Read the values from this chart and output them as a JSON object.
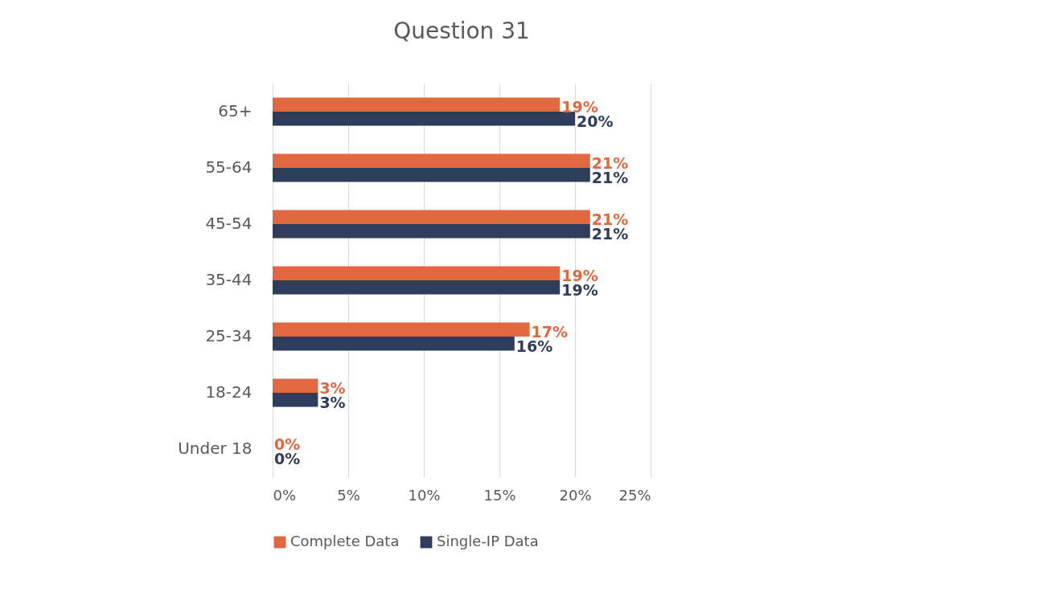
{
  "chart_data": {
    "type": "bar",
    "orientation": "horizontal",
    "title": "Question 31",
    "categories": [
      "65+",
      "55-64",
      "45-54",
      "35-44",
      "25-34",
      "18-24",
      "Under 18"
    ],
    "series": [
      {
        "name": "Complete Data",
        "color": "#e0673e",
        "values": [
          19,
          21,
          21,
          19,
          17,
          3,
          0
        ],
        "value_labels": [
          "19%",
          "21%",
          "21%",
          "19%",
          "17%",
          "3%",
          "0%"
        ]
      },
      {
        "name": "Single-IP Data",
        "color": "#2e3d5b",
        "values": [
          20,
          21,
          21,
          19,
          16,
          3,
          0
        ],
        "value_labels": [
          "20%",
          "21%",
          "21%",
          "19%",
          "16%",
          "3%",
          "0%"
        ]
      }
    ],
    "xlim": [
      0,
      25
    ],
    "xticks": [
      {
        "value": 0,
        "label": "0%"
      },
      {
        "value": 5,
        "label": "5%"
      },
      {
        "value": 10,
        "label": "10%"
      },
      {
        "value": 15,
        "label": "15%"
      },
      {
        "value": 20,
        "label": "20%"
      },
      {
        "value": 25,
        "label": "25%"
      }
    ],
    "grid": "x",
    "legend": "bottom"
  }
}
